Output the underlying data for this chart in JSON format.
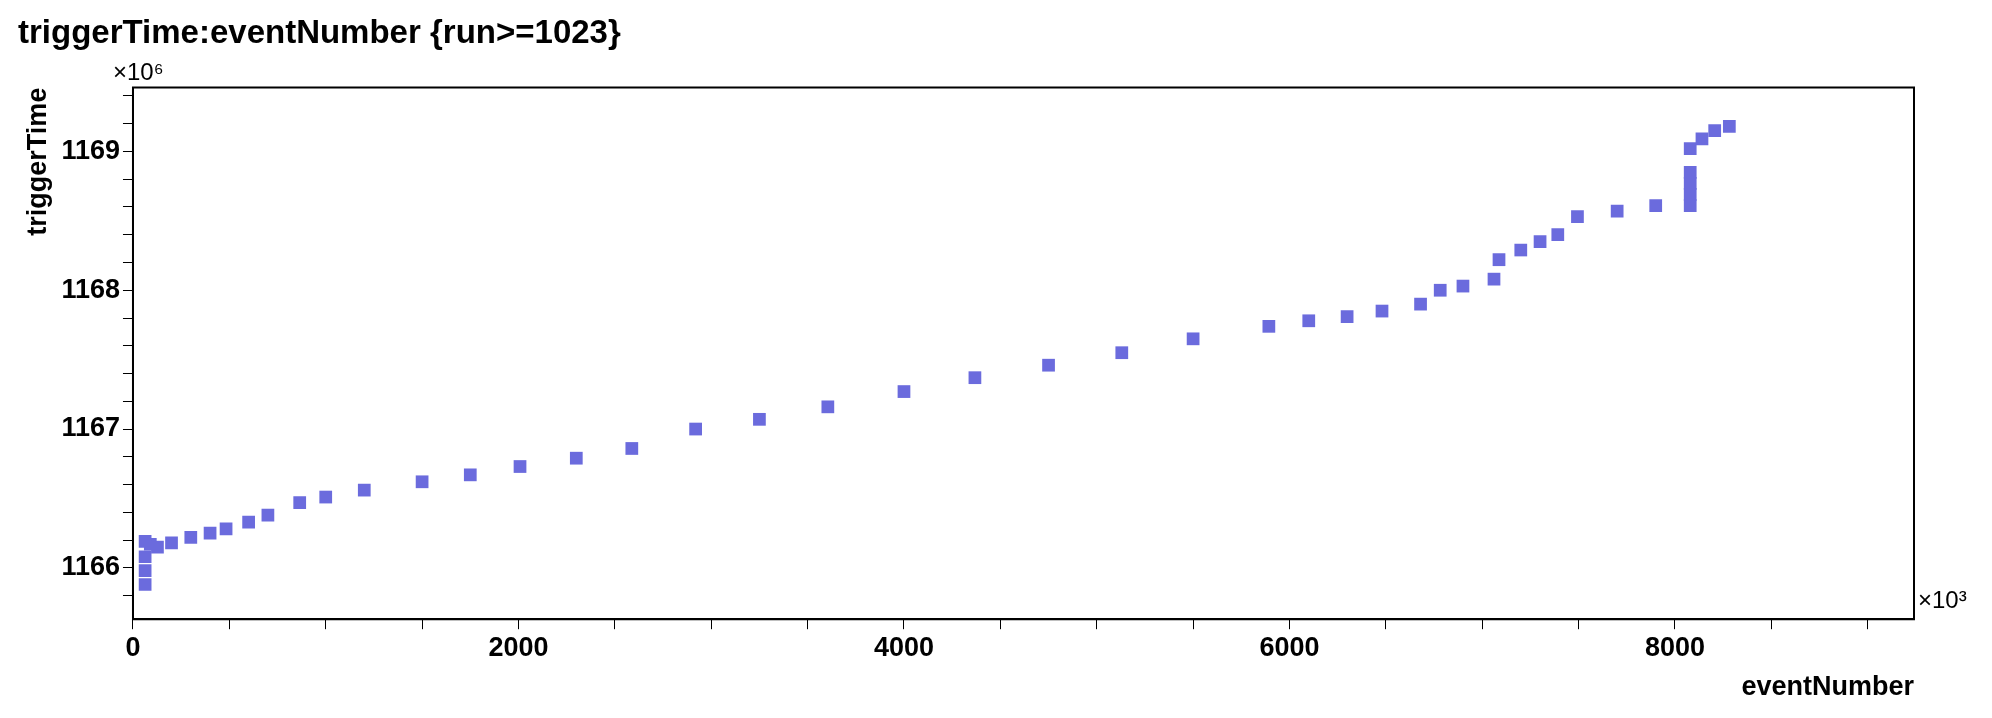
{
  "chart_data": {
    "type": "scatter",
    "title": "triggerTime:eventNumber {run>=1023}",
    "xlabel": "eventNumber",
    "ylabel": "triggerTime",
    "annotations": [
      "×10³",
      "×10⁶"
    ],
    "xlim": [
      0,
      9240
    ],
    "ylim": [
      1165.63,
      1169.46
    ],
    "xticks": [
      0,
      {
        "value": 500,
        "label": null
      },
      {
        "value": 1000,
        "label": null
      },
      {
        "value": 1500,
        "label": null
      },
      2000,
      {
        "value": 2500,
        "label": null
      },
      {
        "value": 3000,
        "label": null
      },
      {
        "value": 3500,
        "label": null
      },
      4000,
      {
        "value": 4500,
        "label": null
      },
      {
        "value": 5000,
        "label": null
      },
      {
        "value": 5500,
        "label": null
      },
      6000,
      {
        "value": 6500,
        "label": null
      },
      {
        "value": 7000,
        "label": null
      },
      {
        "value": 7500,
        "label": null
      },
      8000,
      {
        "value": 8500,
        "label": null
      },
      {
        "value": 9000,
        "label": null
      }
    ],
    "yticks": [
      {
        "value": 1165.8,
        "label": null
      },
      1166,
      {
        "value": 1166.2,
        "label": null
      },
      {
        "value": 1166.4,
        "label": null
      },
      {
        "value": 1166.6,
        "label": null
      },
      {
        "value": 1166.8,
        "label": null
      },
      1167,
      {
        "value": 1167.2,
        "label": null
      },
      {
        "value": 1167.4,
        "label": null
      },
      {
        "value": 1167.6,
        "label": null
      },
      {
        "value": 1167.8,
        "label": null
      },
      1168,
      {
        "value": 1168.2,
        "label": null
      },
      {
        "value": 1168.4,
        "label": null
      },
      {
        "value": 1168.6,
        "label": null
      },
      {
        "value": 1168.8,
        "label": null
      },
      1169,
      {
        "value": 1169.2,
        "label": null
      },
      {
        "value": 1169.4,
        "label": null
      }
    ],
    "marker": "square",
    "grid": false,
    "legend": false,
    "series": [
      {
        "color": "#6b6bdd",
        "x": [
          63,
          63,
          63,
          63,
          90,
          127,
          200,
          300,
          400,
          483,
          600,
          700,
          865,
          1000,
          1200,
          1500,
          1750,
          2008,
          2300,
          2588,
          2919,
          3250,
          3605,
          4000,
          4368,
          4750,
          5130,
          5500,
          5893,
          6100,
          6299,
          6480,
          6680,
          6782,
          6900,
          7061,
          7087,
          7200,
          7300,
          7392,
          7494,
          7700,
          7900,
          8079,
          8079,
          8079,
          8079,
          8079,
          8140,
          8206,
          8282
        ],
        "values": [
          1165.88,
          1165.98,
          1166.08,
          1166.19,
          1166.17,
          1166.15,
          1166.18,
          1166.22,
          1166.25,
          1166.28,
          1166.33,
          1166.38,
          1166.47,
          1166.51,
          1166.56,
          1166.62,
          1166.67,
          1166.73,
          1166.79,
          1166.86,
          1167.0,
          1167.07,
          1167.16,
          1167.27,
          1167.37,
          1167.46,
          1167.55,
          1167.65,
          1167.74,
          1167.78,
          1167.81,
          1167.85,
          1167.9,
          1168.0,
          1168.03,
          1168.08,
          1168.22,
          1168.29,
          1168.35,
          1168.4,
          1168.53,
          1168.57,
          1168.61,
          1168.61,
          1168.69,
          1168.77,
          1168.85,
          1169.02,
          1169.09,
          1169.15,
          1169.18
        ]
      }
    ]
  }
}
